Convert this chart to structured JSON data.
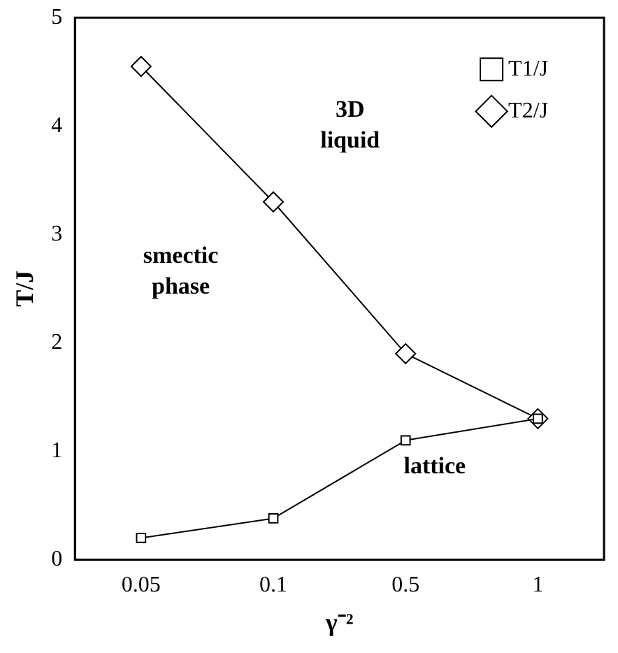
{
  "chart_data": {
    "type": "line",
    "xlabel": "γ⁻²",
    "ylabel": "T/J",
    "categories": [
      "0.05",
      "0.1",
      "0.5",
      "1"
    ],
    "series": [
      {
        "name": "T1/J",
        "color": "#000000",
        "marker": "square",
        "values": [
          0.2,
          0.38,
          1.1,
          1.3
        ]
      },
      {
        "name": "T2/J",
        "color": "#000000",
        "marker": "diamond",
        "values": [
          4.55,
          3.3,
          1.9,
          1.3
        ]
      }
    ],
    "ylim": [
      0,
      5
    ],
    "yticks": [
      0,
      1,
      2,
      3,
      4,
      5
    ],
    "grid": false,
    "legend": "top right",
    "line_style": "solid",
    "annotations": [
      "3D liquid",
      "smectic phase",
      "lattice"
    ]
  }
}
